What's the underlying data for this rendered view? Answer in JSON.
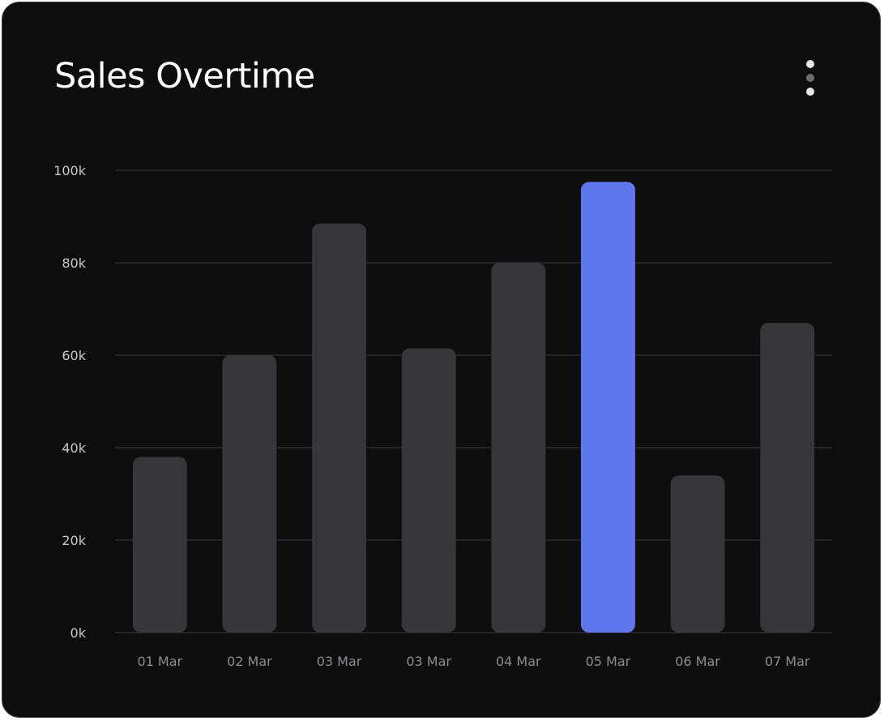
{
  "card": {
    "title": "Sales Overtime",
    "menu_icon": "more-vertical-icon"
  },
  "colors": {
    "background": "#0d0d0e",
    "bar": "#36363a",
    "highlight": "#5f76ed",
    "grid": "#3a3a3e"
  },
  "chart_data": {
    "type": "bar",
    "title": "Sales Overtime",
    "xlabel": "",
    "ylabel": "",
    "categories": [
      "01 Mar",
      "02 Mar",
      "03 Mar",
      "03 Mar",
      "04 Mar",
      "05 Mar",
      "06 Mar",
      "07 Mar"
    ],
    "values": [
      38000,
      60000,
      88500,
      61500,
      80000,
      97500,
      34000,
      67000
    ],
    "highlight_index": 5,
    "ylim": [
      0,
      100000
    ],
    "yticks": [
      0,
      20000,
      40000,
      60000,
      80000,
      100000
    ],
    "ytick_labels": [
      "0k",
      "20k",
      "40k",
      "60k",
      "80k",
      "100k"
    ],
    "grid": true,
    "legend": "none"
  }
}
